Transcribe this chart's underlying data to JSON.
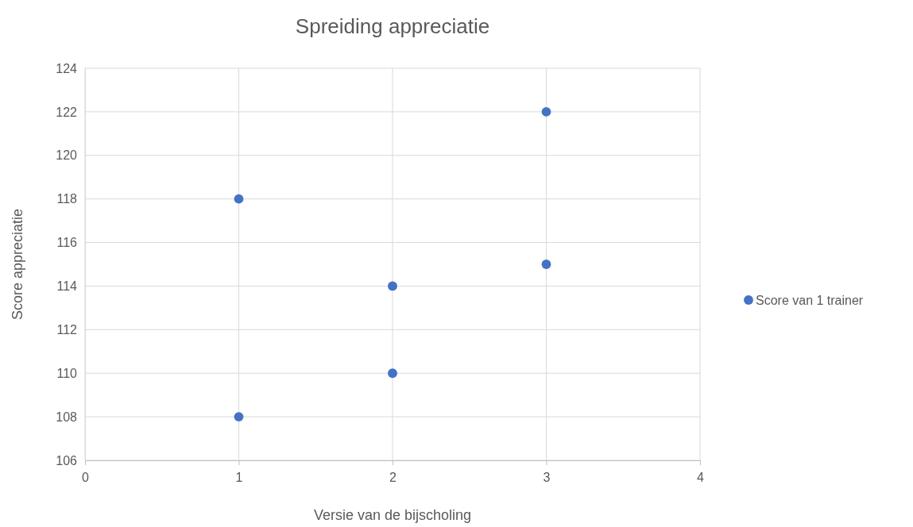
{
  "chart_data": {
    "type": "scatter",
    "title": "Spreiding appreciatie",
    "xlabel": "Versie van de bijscholing",
    "ylabel": "Score appreciatie",
    "series": [
      {
        "name": "Score van 1 trainer",
        "color": "#4472c4",
        "x": [
          1,
          1,
          2,
          2,
          3,
          3
        ],
        "values": [
          118,
          108,
          114,
          110,
          122,
          115
        ]
      }
    ],
    "xlim": [
      0,
      4
    ],
    "xticks": [
      0,
      1,
      2,
      3,
      4
    ],
    "ylim": [
      106,
      124
    ],
    "yticks": [
      106,
      108,
      110,
      112,
      114,
      116,
      118,
      120,
      122,
      124
    ],
    "grid": true,
    "legend": "right",
    "marker": "circle"
  }
}
